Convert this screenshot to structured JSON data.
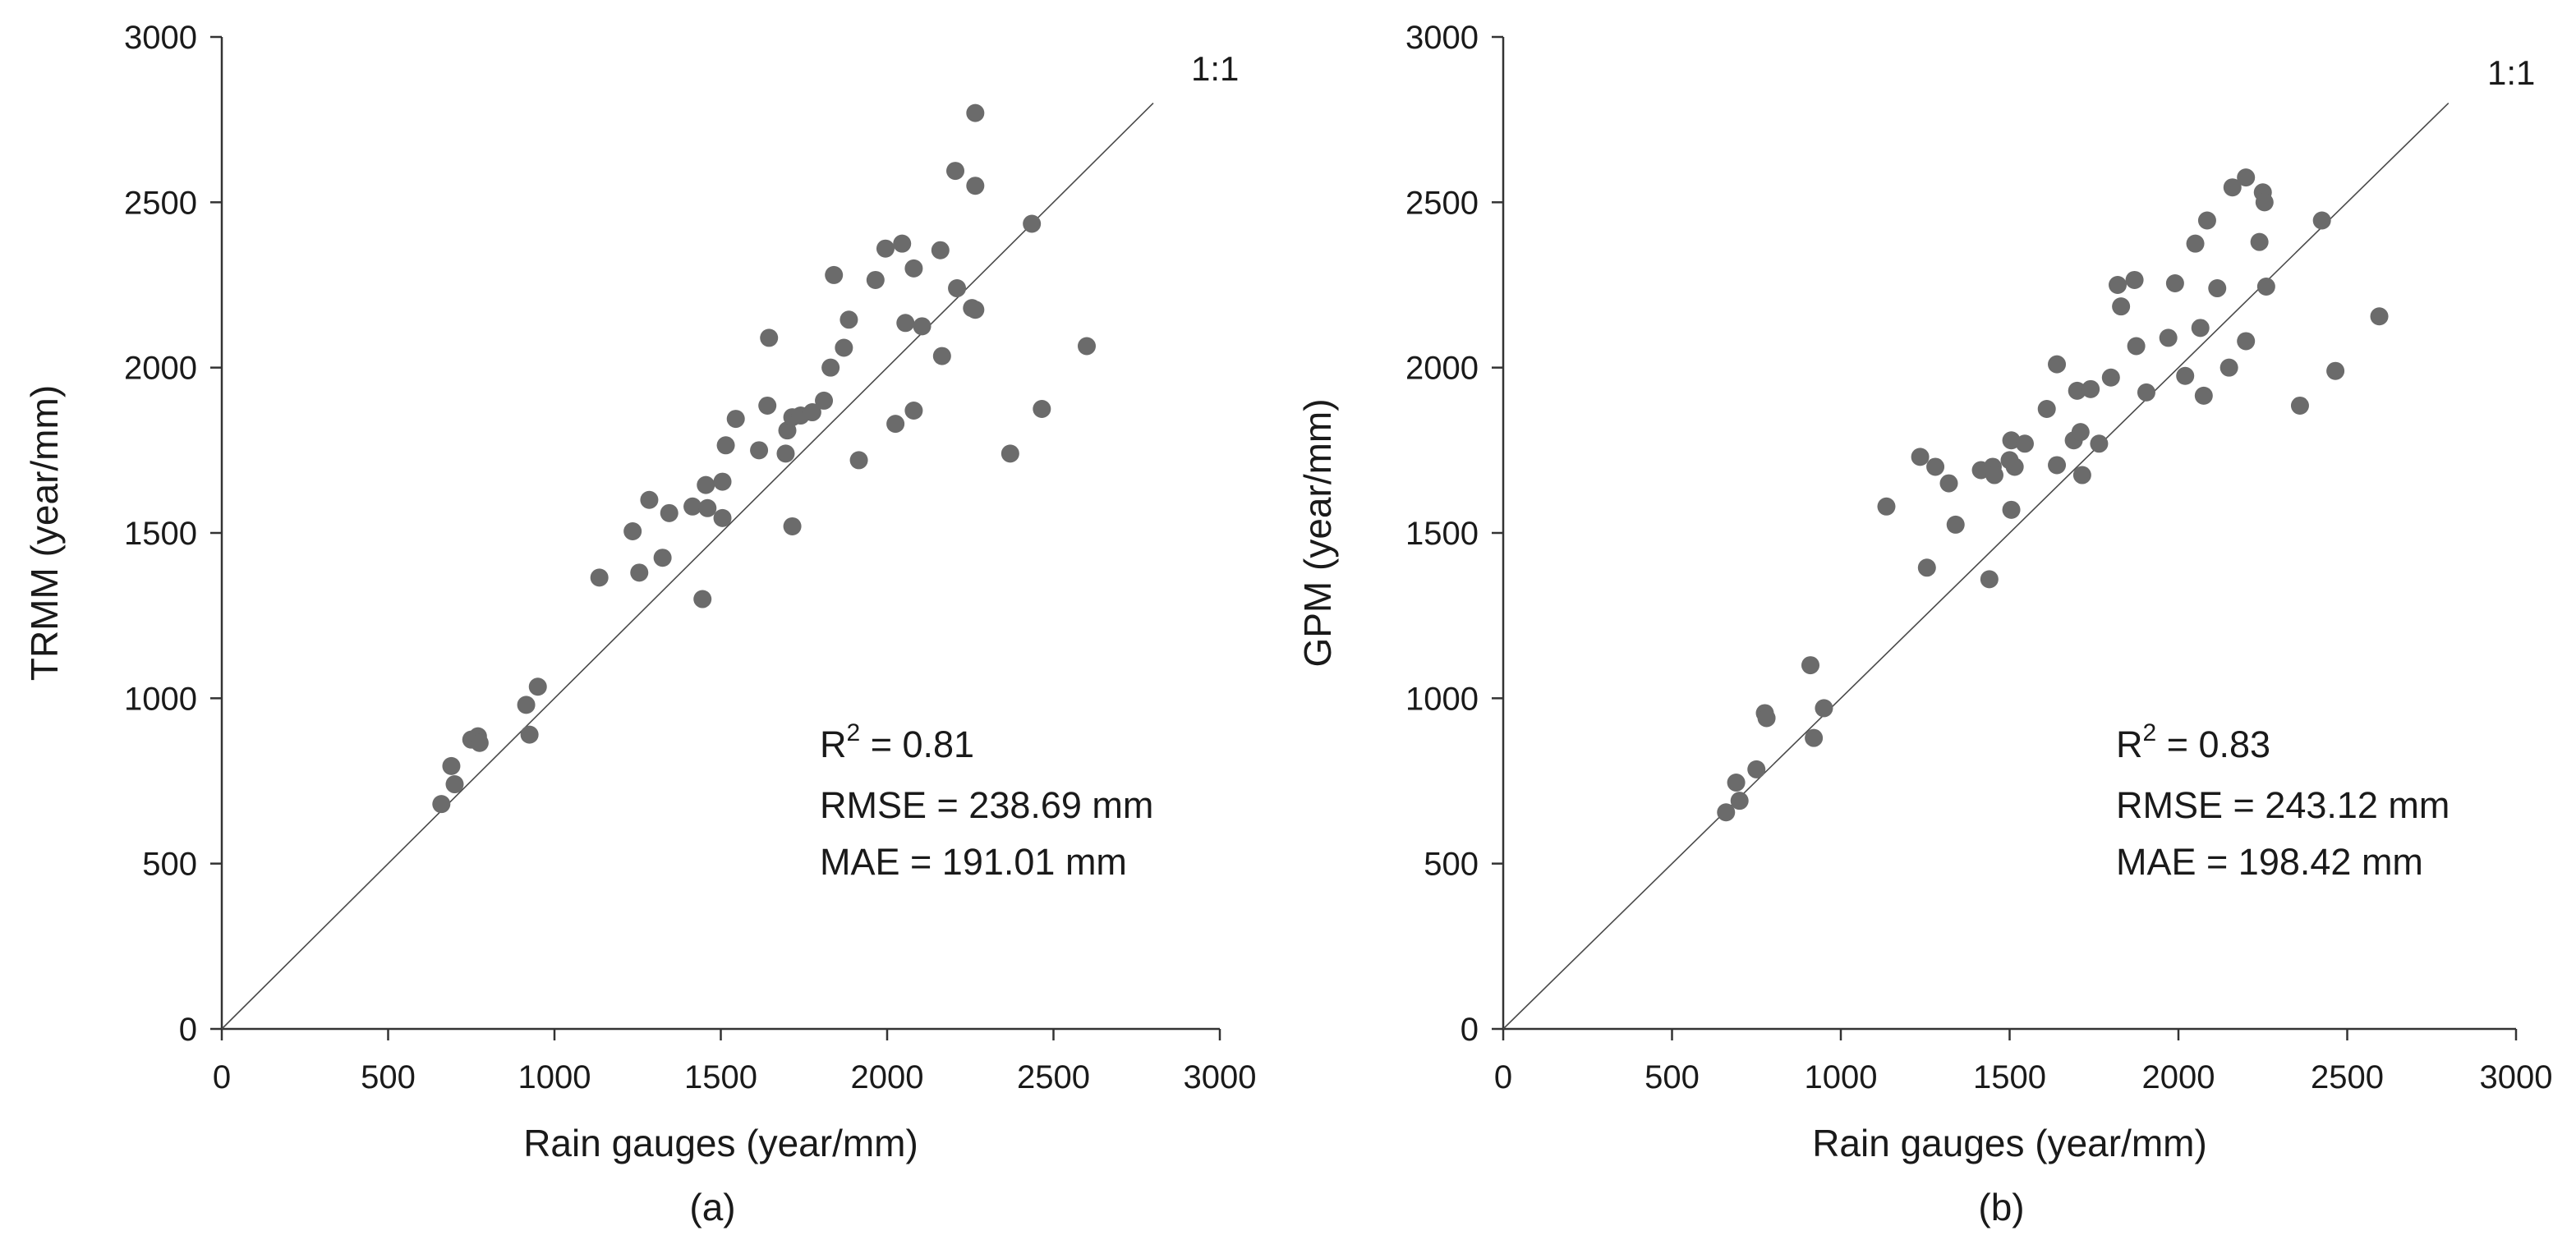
{
  "chart_data": [
    {
      "type": "scatter",
      "panel_label": "(a)",
      "xlabel": "Rain gauges (year/mm)",
      "ylabel": "TRMM (year/mm)",
      "xlim": [
        0,
        3000
      ],
      "ylim": [
        0,
        3000
      ],
      "xticks": [
        "0",
        "500",
        "1000",
        "1500",
        "2000",
        "2500",
        "3000"
      ],
      "yticks": [
        "0",
        "500",
        "1000",
        "1500",
        "2000",
        "2500",
        "3000"
      ],
      "grid": false,
      "reference_line": {
        "label": "1:1",
        "from": [
          0,
          0
        ],
        "to": [
          2800,
          2800
        ]
      },
      "stats": {
        "r2_prefix": "R",
        "r2_sup": "2",
        "r2_value": " = 0.81",
        "rmse": "RMSE = 238.69 mm",
        "mae": "MAE = 191.01 mm"
      },
      "marker_color": "#6b6b6b",
      "points": [
        [
          660,
          680
        ],
        [
          690,
          795
        ],
        [
          700,
          740
        ],
        [
          750,
          875
        ],
        [
          770,
          885
        ],
        [
          775,
          865
        ],
        [
          915,
          980
        ],
        [
          925,
          890
        ],
        [
          950,
          1035
        ],
        [
          1135,
          1365
        ],
        [
          1235,
          1505
        ],
        [
          1255,
          1380
        ],
        [
          1285,
          1600
        ],
        [
          1325,
          1425
        ],
        [
          1345,
          1560
        ],
        [
          1415,
          1580
        ],
        [
          1445,
          1300
        ],
        [
          1455,
          1645
        ],
        [
          1460,
          1575
        ],
        [
          1505,
          1545
        ],
        [
          1505,
          1655
        ],
        [
          1515,
          1765
        ],
        [
          1545,
          1845
        ],
        [
          1615,
          1750
        ],
        [
          1640,
          1885
        ],
        [
          1645,
          2090
        ],
        [
          1695,
          1740
        ],
        [
          1700,
          1810
        ],
        [
          1715,
          1520
        ],
        [
          1715,
          1850
        ],
        [
          1740,
          1855
        ],
        [
          1775,
          1865
        ],
        [
          1810,
          1900
        ],
        [
          1830,
          2000
        ],
        [
          1840,
          2280
        ],
        [
          1870,
          2060
        ],
        [
          1885,
          2145
        ],
        [
          1915,
          1720
        ],
        [
          1965,
          2265
        ],
        [
          1995,
          2360
        ],
        [
          2025,
          1830
        ],
        [
          2045,
          2375
        ],
        [
          2055,
          2135
        ],
        [
          2080,
          1870
        ],
        [
          2080,
          2300
        ],
        [
          2105,
          2125
        ],
        [
          2160,
          2355
        ],
        [
          2165,
          2035
        ],
        [
          2205,
          2595
        ],
        [
          2210,
          2240
        ],
        [
          2255,
          2180
        ],
        [
          2265,
          2175
        ],
        [
          2265,
          2550
        ],
        [
          2265,
          2770
        ],
        [
          2370,
          1740
        ],
        [
          2435,
          2435
        ],
        [
          2465,
          1875
        ],
        [
          2600,
          2065
        ]
      ]
    },
    {
      "type": "scatter",
      "panel_label": "(b)",
      "xlabel": "Rain gauges (year/mm)",
      "ylabel": "GPM (year/mm)",
      "xlim": [
        0,
        3000
      ],
      "ylim": [
        0,
        3000
      ],
      "xticks": [
        "0",
        "500",
        "1000",
        "1500",
        "2000",
        "2500",
        "3000"
      ],
      "yticks": [
        "0",
        "500",
        "1000",
        "1500",
        "2000",
        "2500",
        "3000"
      ],
      "grid": false,
      "reference_line": {
        "label": "1:1",
        "from": [
          0,
          0
        ],
        "to": [
          2800,
          2800
        ]
      },
      "stats": {
        "r2_prefix": "R",
        "r2_sup": "2",
        "r2_value": " = 0.83",
        "rmse": "RMSE = 243.12 mm",
        "mae": "MAE = 198.42 mm"
      },
      "marker_color": "#6b6b6b",
      "points": [
        [
          660,
          655
        ],
        [
          690,
          745
        ],
        [
          700,
          690
        ],
        [
          750,
          785
        ],
        [
          775,
          955
        ],
        [
          780,
          940
        ],
        [
          910,
          1100
        ],
        [
          920,
          880
        ],
        [
          950,
          970
        ],
        [
          1135,
          1580
        ],
        [
          1235,
          1730
        ],
        [
          1255,
          1395
        ],
        [
          1280,
          1700
        ],
        [
          1320,
          1650
        ],
        [
          1340,
          1525
        ],
        [
          1415,
          1690
        ],
        [
          1440,
          1360
        ],
        [
          1450,
          1700
        ],
        [
          1455,
          1675
        ],
        [
          1500,
          1720
        ],
        [
          1505,
          1570
        ],
        [
          1505,
          1780
        ],
        [
          1515,
          1700
        ],
        [
          1545,
          1770
        ],
        [
          1610,
          1875
        ],
        [
          1640,
          2010
        ],
        [
          1640,
          1705
        ],
        [
          1690,
          1780
        ],
        [
          1700,
          1930
        ],
        [
          1710,
          1805
        ],
        [
          1715,
          1675
        ],
        [
          1740,
          1935
        ],
        [
          1765,
          1770
        ],
        [
          1800,
          1970
        ],
        [
          1820,
          2250
        ],
        [
          1830,
          2185
        ],
        [
          1870,
          2265
        ],
        [
          1875,
          2065
        ],
        [
          1905,
          1925
        ],
        [
          1970,
          2090
        ],
        [
          1990,
          2255
        ],
        [
          2020,
          1975
        ],
        [
          2050,
          2375
        ],
        [
          2065,
          2120
        ],
        [
          2075,
          1915
        ],
        [
          2085,
          2445
        ],
        [
          2115,
          2240
        ],
        [
          2150,
          2000
        ],
        [
          2160,
          2545
        ],
        [
          2200,
          2575
        ],
        [
          2200,
          2080
        ],
        [
          2240,
          2380
        ],
        [
          2250,
          2530
        ],
        [
          2255,
          2500
        ],
        [
          2260,
          2245
        ],
        [
          2360,
          1885
        ],
        [
          2425,
          2445
        ],
        [
          2465,
          1990
        ],
        [
          2595,
          2155
        ]
      ]
    }
  ]
}
